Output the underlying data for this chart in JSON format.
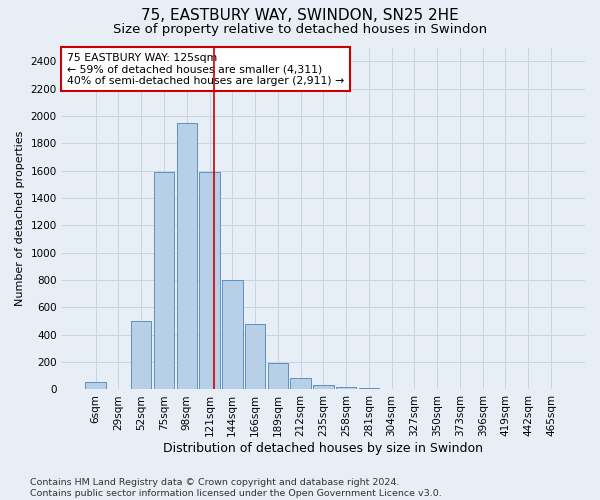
{
  "title": "75, EASTBURY WAY, SWINDON, SN25 2HE",
  "subtitle": "Size of property relative to detached houses in Swindon",
  "xlabel": "Distribution of detached houses by size in Swindon",
  "ylabel": "Number of detached properties",
  "footer_line1": "Contains HM Land Registry data © Crown copyright and database right 2024.",
  "footer_line2": "Contains public sector information licensed under the Open Government Licence v3.0.",
  "categories": [
    "6sqm",
    "29sqm",
    "52sqm",
    "75sqm",
    "98sqm",
    "121sqm",
    "144sqm",
    "166sqm",
    "189sqm",
    "212sqm",
    "235sqm",
    "258sqm",
    "281sqm",
    "304sqm",
    "327sqm",
    "350sqm",
    "373sqm",
    "396sqm",
    "419sqm",
    "442sqm",
    "465sqm"
  ],
  "values": [
    55,
    0,
    500,
    1590,
    1950,
    1590,
    800,
    475,
    195,
    85,
    30,
    20,
    10,
    0,
    0,
    0,
    0,
    0,
    0,
    0,
    0
  ],
  "bar_color": "#b8cfe8",
  "bar_edge_color": "#6090c0",
  "bar_edge_width": 0.7,
  "grid_color": "#c8d4e4",
  "bg_color": "#e8eef6",
  "vline_x": 5.18,
  "vline_color": "#cc0000",
  "annotation_text": "75 EASTBURY WAY: 125sqm\n← 59% of detached houses are smaller (4,311)\n40% of semi-detached houses are larger (2,911) →",
  "annotation_box_color": "#ffffff",
  "annotation_box_edge_color": "#cc0000",
  "ylim": [
    0,
    2500
  ],
  "yticks": [
    0,
    200,
    400,
    600,
    800,
    1000,
    1200,
    1400,
    1600,
    1800,
    2000,
    2200,
    2400
  ],
  "title_fontsize": 11,
  "subtitle_fontsize": 9.5,
  "xlabel_fontsize": 9,
  "ylabel_fontsize": 8,
  "tick_fontsize": 7.5,
  "footer_fontsize": 6.8,
  "annotation_fontsize": 7.8
}
